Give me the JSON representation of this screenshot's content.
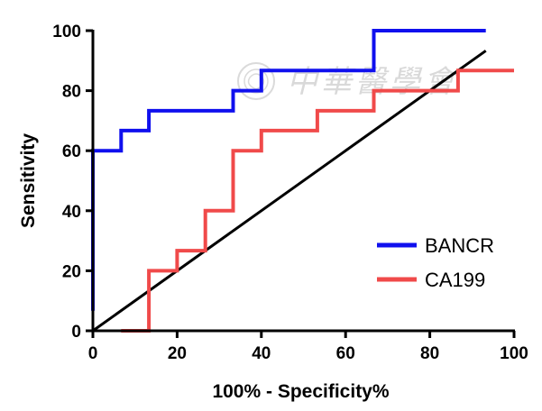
{
  "chart_data": {
    "type": "line",
    "step": true,
    "xlabel": "100% - Specificity%",
    "ylabel": "Sensitivity",
    "xlim": [
      0,
      100
    ],
    "ylim": [
      0,
      100
    ],
    "x_ticks": [
      0,
      20,
      40,
      60,
      80,
      100
    ],
    "y_ticks": [
      0,
      20,
      40,
      60,
      80,
      100
    ],
    "grid": false,
    "legend_position": "bottom-right",
    "series": [
      {
        "name": "BANCR",
        "color": "#1010ee",
        "x": [
          0,
          0,
          6.7,
          6.7,
          13.3,
          13.3,
          33.3,
          33.3,
          40,
          40,
          66.7,
          66.7,
          93.3
        ],
        "y": [
          6.7,
          60,
          60,
          66.7,
          66.7,
          73.3,
          73.3,
          80,
          80,
          86.7,
          86.7,
          100,
          100
        ]
      },
      {
        "name": "CA199",
        "color": "#f04a4a",
        "x": [
          6.7,
          13.3,
          13.3,
          20,
          20,
          26.7,
          26.7,
          33.3,
          33.3,
          40,
          40,
          53.3,
          53.3,
          66.7,
          66.7,
          86.7,
          86.7,
          100
        ],
        "y": [
          0,
          0,
          20,
          20,
          26.7,
          26.7,
          40,
          40,
          60,
          60,
          66.7,
          66.7,
          73.3,
          73.3,
          80,
          80,
          86.7,
          86.7
        ]
      }
    ],
    "reference_line": {
      "color": "#000000",
      "x": [
        0,
        93.3
      ],
      "y": [
        0,
        93.3
      ]
    }
  },
  "watermark": {
    "text": "中華醫學會",
    "icon": "seal-icon"
  }
}
